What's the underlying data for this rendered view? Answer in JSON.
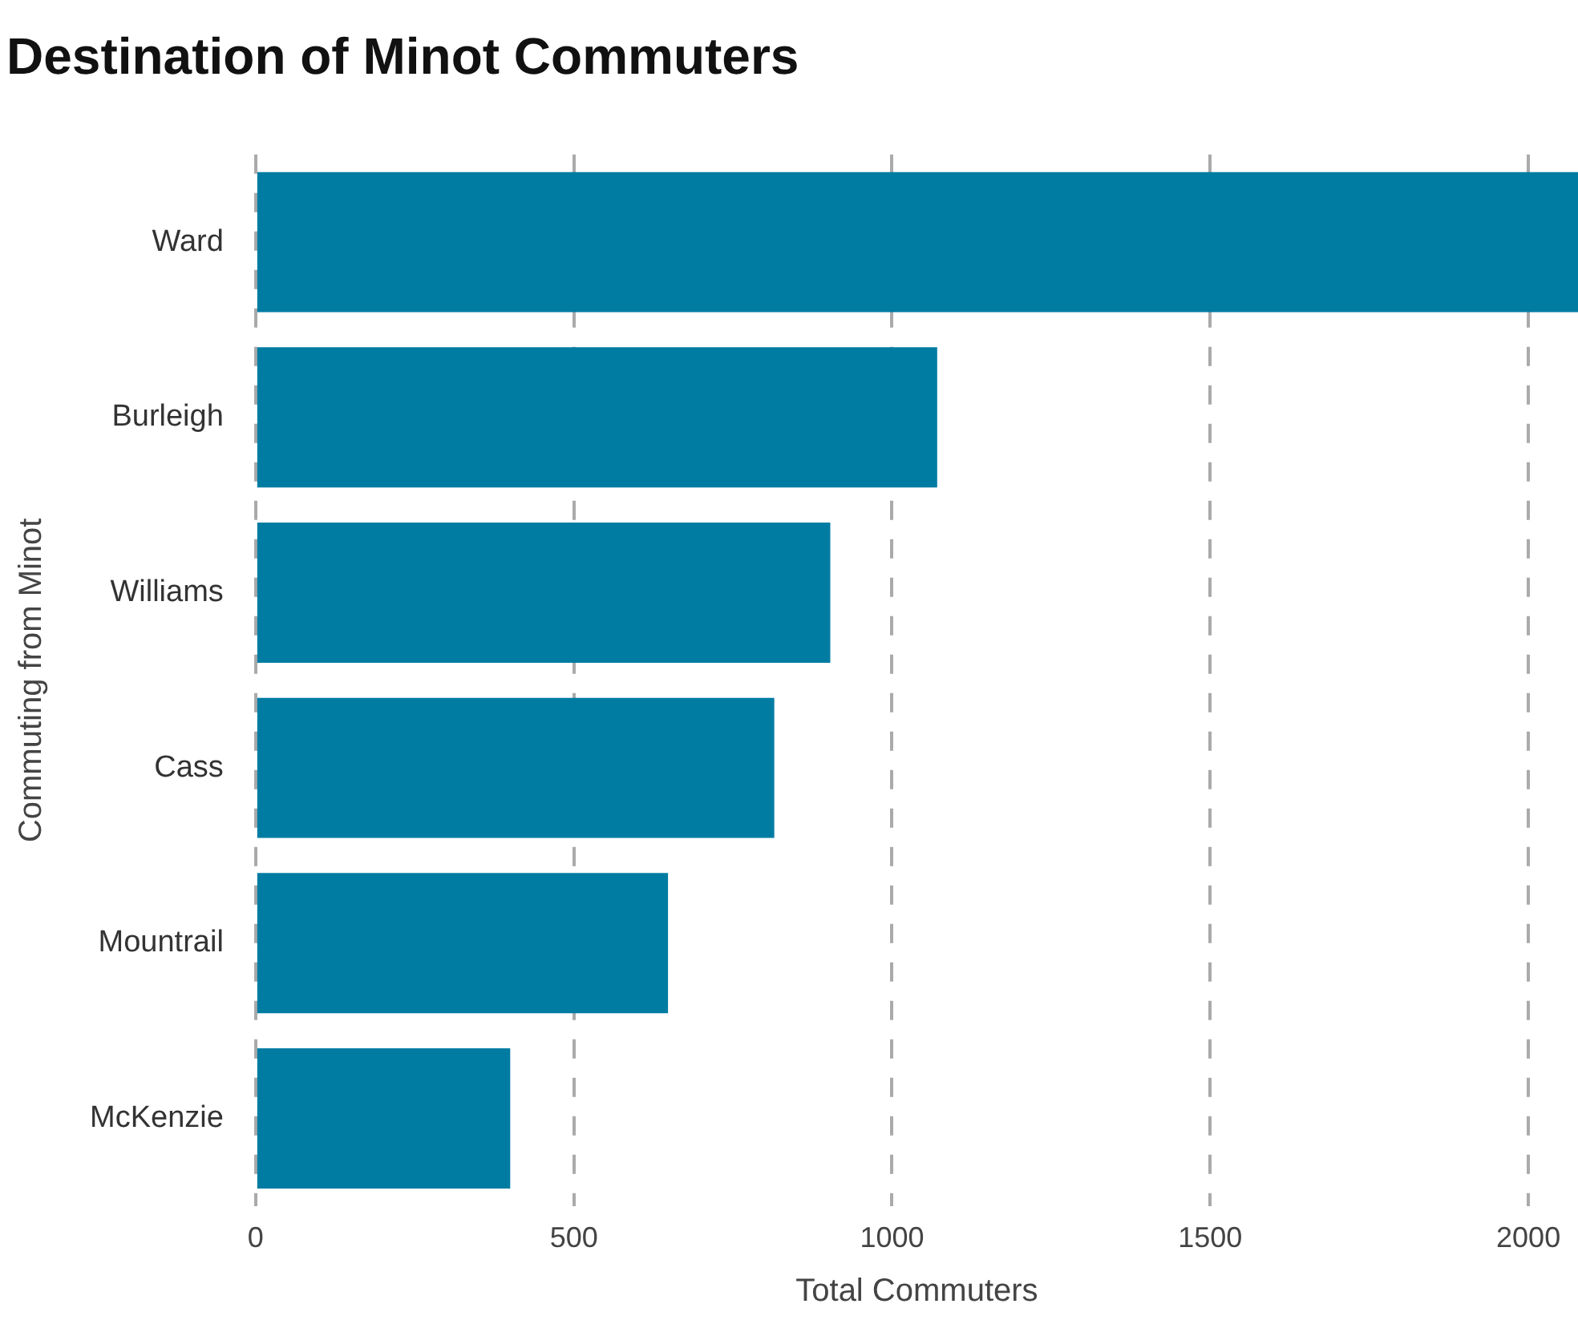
{
  "chart_data": {
    "type": "bar",
    "orientation": "horizontal",
    "title": "Destination of Minot Commuters",
    "xlabel": "Total Commuters",
    "ylabel": "Commuting from Minot",
    "categories": [
      "Ward",
      "Burleigh",
      "Williams",
      "Cass",
      "Mountrail",
      "McKenzie"
    ],
    "values": [
      2078,
      1071,
      903,
      815,
      648,
      400
    ],
    "color": "#007ca3",
    "xlim": [
      0,
      2078
    ],
    "xticks": [
      0,
      500,
      1000,
      1500,
      2000
    ],
    "grid": "x",
    "legend": false
  }
}
